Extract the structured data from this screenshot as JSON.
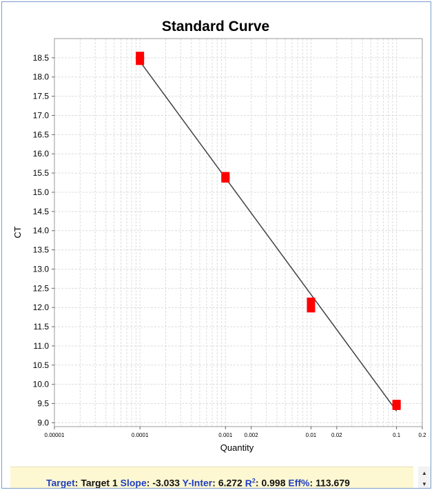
{
  "chart_data": {
    "type": "scatter",
    "title": "Standard Curve",
    "xlabel": "Quantity",
    "ylabel": "CT",
    "x_scale": "log",
    "xlim": [
      1e-05,
      0.2
    ],
    "ylim": [
      8.9,
      19.0
    ],
    "x_ticks": [
      {
        "value": 1e-05,
        "label": "0.00001"
      },
      {
        "value": 0.0001,
        "label": "0.0001"
      },
      {
        "value": 0.001,
        "label": "0.001"
      },
      {
        "value": 0.002,
        "label": "0.002"
      },
      {
        "value": 0.01,
        "label": "0.01"
      },
      {
        "value": 0.02,
        "label": "0.02"
      },
      {
        "value": 0.1,
        "label": "0.1"
      },
      {
        "value": 0.2,
        "label": "0.2"
      }
    ],
    "y_ticks": [
      9.0,
      9.5,
      10.0,
      10.5,
      11.0,
      11.5,
      12.0,
      12.5,
      13.0,
      13.5,
      14.0,
      14.5,
      15.0,
      15.5,
      16.0,
      16.5,
      17.0,
      17.5,
      18.0,
      18.5
    ],
    "grid": true,
    "points": [
      {
        "x": 0.0001,
        "y": 18.55
      },
      {
        "x": 0.0001,
        "y": 18.42
      },
      {
        "x": 0.001,
        "y": 15.42
      },
      {
        "x": 0.001,
        "y": 15.36
      },
      {
        "x": 0.01,
        "y": 12.15
      },
      {
        "x": 0.01,
        "y": 11.98
      },
      {
        "x": 0.1,
        "y": 9.49
      },
      {
        "x": 0.1,
        "y": 9.44
      }
    ],
    "fit_line": {
      "x": [
        0.0001,
        0.1
      ],
      "y": [
        18.404,
        9.305
      ]
    },
    "point_color": "#ff0000",
    "line_color": "#404040"
  },
  "info": {
    "target_label": "Target",
    "target_value": "Target 1",
    "slope_label": "Slope",
    "slope_value": "-3.033",
    "yinter_label": "Y-Inter",
    "yinter_value": "6.272",
    "r2_label": "R",
    "r2_sup": "2",
    "r2_value": "0.998",
    "eff_label": "Eff%",
    "eff_value": "113.679"
  }
}
